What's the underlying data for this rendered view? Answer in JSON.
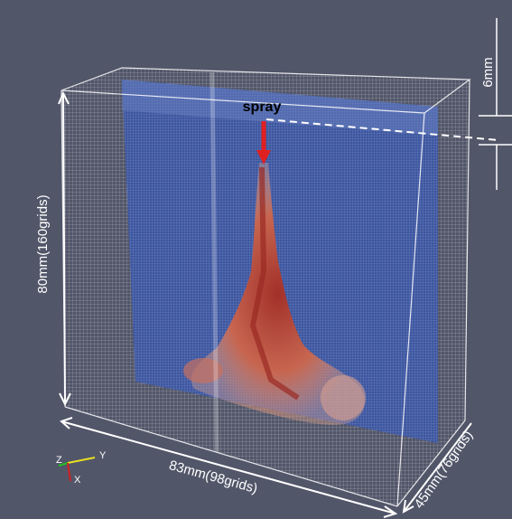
{
  "annotations": {
    "spray": "spray",
    "top_gap": "6mm",
    "height": "80mm(160grids)",
    "width": "83mm(98grids)",
    "depth": "45mm(76grids)"
  },
  "axes": {
    "z": "Z",
    "y": "Y",
    "x": "X"
  }
}
